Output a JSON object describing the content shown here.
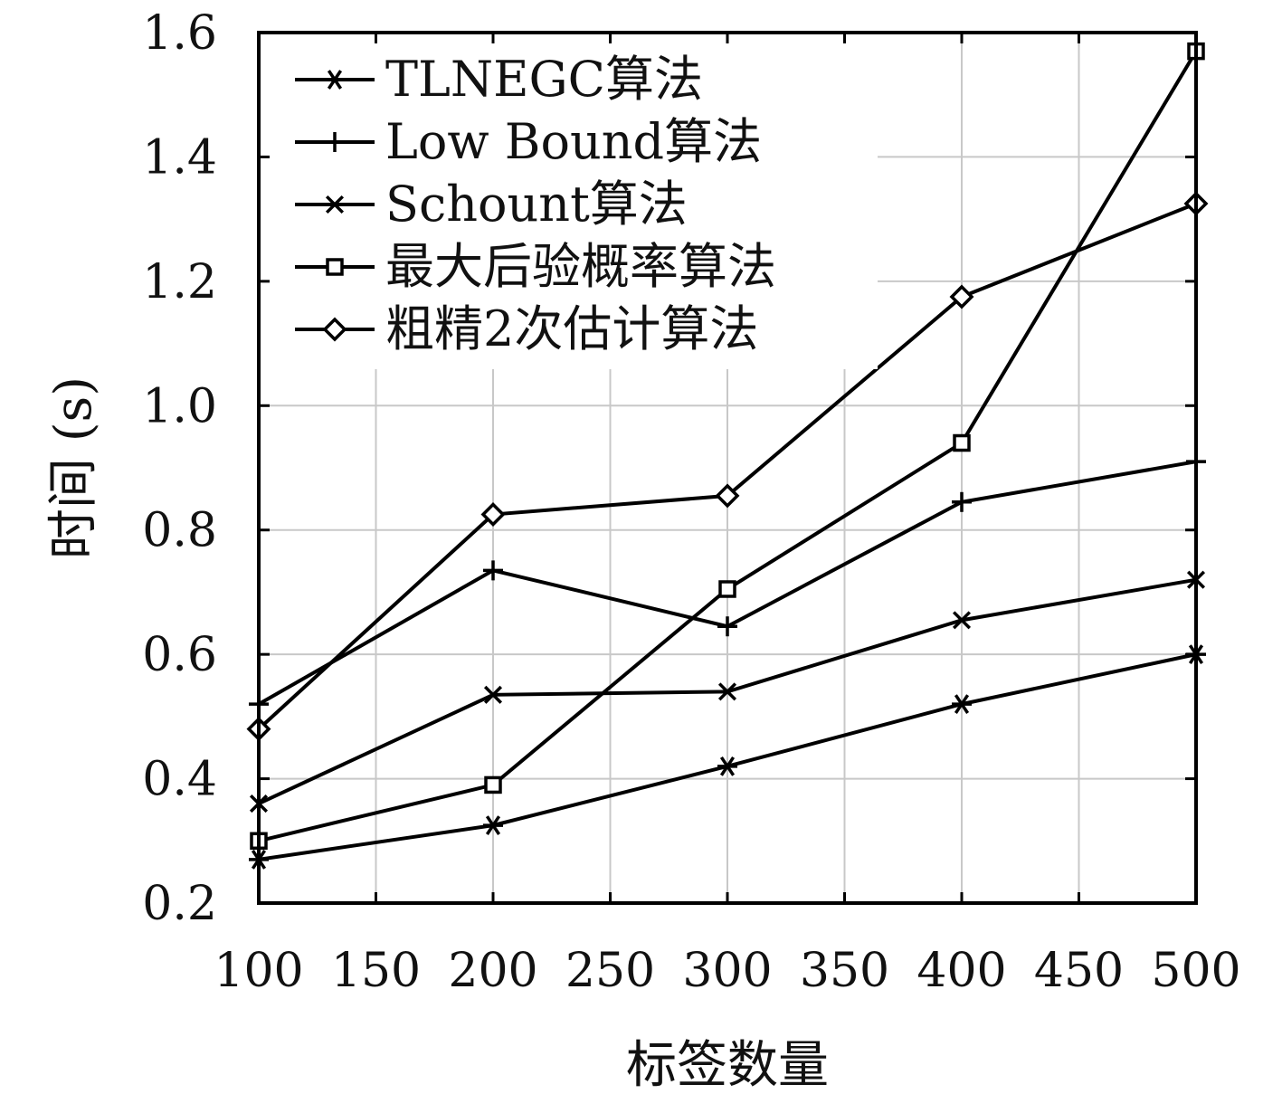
{
  "chart_data": {
    "type": "line",
    "xlabel": "标签数量",
    "ylabel": "时间 (s)",
    "xlim": [
      100,
      500
    ],
    "ylim": [
      0.2,
      1.6
    ],
    "x_ticks": [
      100,
      150,
      200,
      250,
      300,
      350,
      400,
      450,
      500
    ],
    "x_tick_labels": [
      "100",
      "150",
      "200",
      "250",
      "300",
      "350",
      "400",
      "450",
      "500"
    ],
    "y_ticks": [
      0.2,
      0.4,
      0.6,
      0.8,
      1.0,
      1.2,
      1.4,
      1.6
    ],
    "y_tick_labels": [
      "0.2",
      "0.4",
      "0.6",
      "0.8",
      "1.0",
      "1.2",
      "1.4",
      "1.6"
    ],
    "grid": true,
    "legend_position": "top-left",
    "x": [
      100,
      200,
      300,
      400,
      500
    ],
    "series": [
      {
        "name": "TLNEGC算法",
        "marker": "asterisk",
        "values": [
          0.27,
          0.325,
          0.42,
          0.52,
          0.6
        ]
      },
      {
        "name": "Low Bound算法",
        "marker": "plus",
        "values": [
          0.52,
          0.735,
          0.645,
          0.845,
          0.91
        ]
      },
      {
        "name": "Schount算法",
        "marker": "cross",
        "values": [
          0.36,
          0.535,
          0.54,
          0.655,
          0.72
        ]
      },
      {
        "name": "最大后验概率算法",
        "marker": "square",
        "values": [
          0.3,
          0.39,
          0.705,
          0.94,
          1.57
        ]
      },
      {
        "name": "粗精2次估计算法",
        "marker": "diamond",
        "values": [
          0.48,
          0.825,
          0.855,
          1.175,
          1.325
        ]
      }
    ],
    "colors": {
      "line": "#000000",
      "grid": "#c8c8c8",
      "background": "#ffffff"
    }
  }
}
